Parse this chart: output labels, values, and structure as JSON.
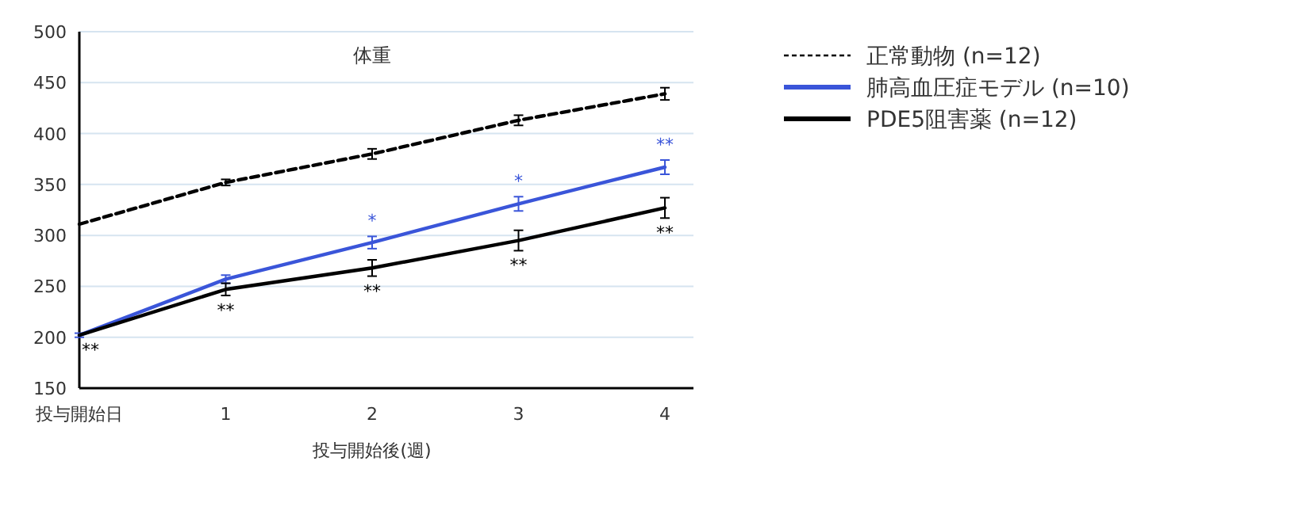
{
  "chart_data": {
    "type": "line",
    "title": "体重",
    "xlabel": "投与開始後(週)",
    "categories": [
      "投与開始日",
      "1",
      "2",
      "3",
      "4"
    ],
    "series": [
      {
        "name": "正常動物 (n=12)",
        "color": "#000000",
        "line_style": "dashed",
        "values": [
          311,
          352,
          380,
          413,
          439
        ],
        "errors": [
          null,
          3,
          5,
          5,
          6
        ]
      },
      {
        "name": "肺高血圧症モデル (n=10)",
        "color": "#3a55d9",
        "line_style": "solid",
        "values": [
          202,
          257,
          293,
          331,
          367
        ],
        "errors": [
          2,
          4,
          6,
          7,
          7
        ]
      },
      {
        "name": "PDE5阻害薬 (n=12)",
        "color": "#000000",
        "line_style": "solid",
        "values": [
          202,
          247,
          268,
          295,
          327
        ],
        "errors": [
          null,
          6,
          8,
          10,
          10
        ]
      }
    ],
    "annotations": [
      {
        "text": "**",
        "x": "投与開始日",
        "y": 202
      },
      {
        "text": "**",
        "x": "1",
        "y": 247
      },
      {
        "text": "**",
        "x": "2",
        "y": 268
      },
      {
        "text": "**",
        "x": "3",
        "y": 295
      },
      {
        "text": "**",
        "x": "4",
        "y": 327
      },
      {
        "text": "*",
        "x": "2",
        "y": 293
      },
      {
        "text": "*",
        "x": "3",
        "y": 331
      },
      {
        "text": "**",
        "x": "4",
        "y": 367
      }
    ],
    "ylim": [
      150,
      500
    ],
    "yticks": [
      150,
      200,
      250,
      300,
      350,
      400,
      450,
      500
    ],
    "grid": "y",
    "legend": "right",
    "marker": "none"
  }
}
